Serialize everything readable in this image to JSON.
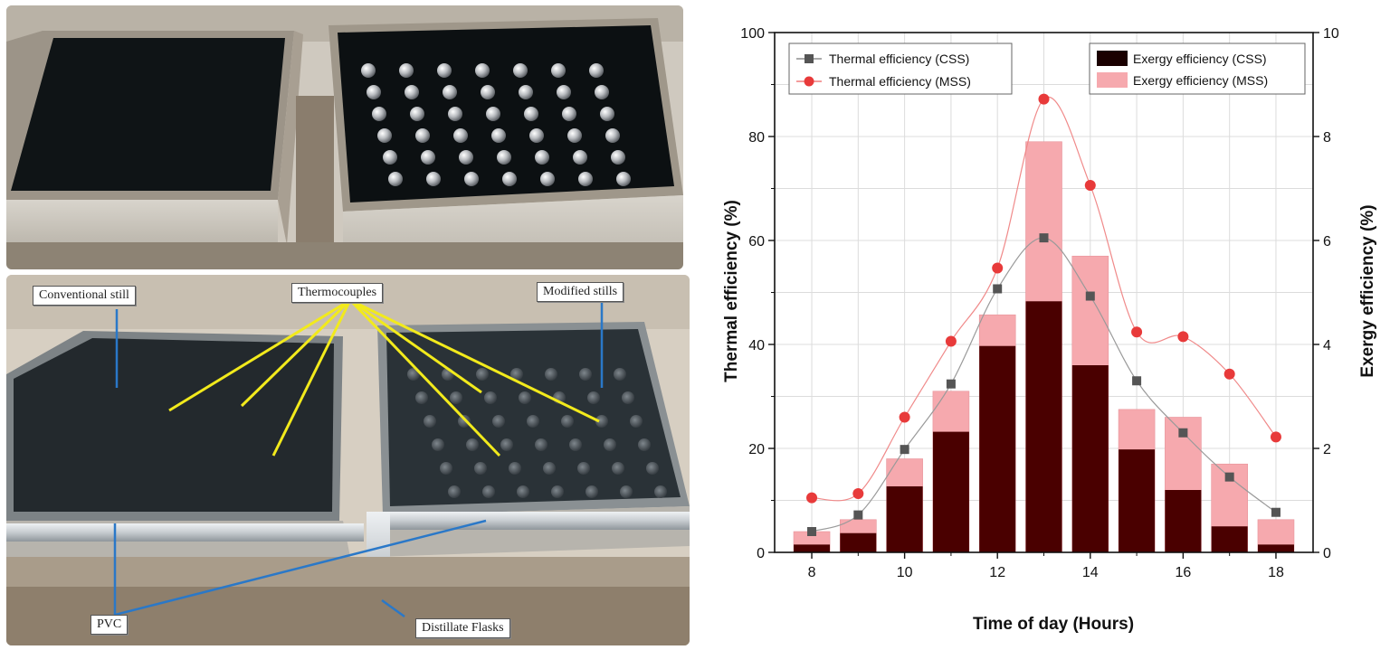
{
  "photo_labels": {
    "conventional": "Conventional still",
    "thermocouples": "Thermocouples",
    "modified": "Modified stills",
    "pvc": "PVC",
    "flasks": "Distillate Flasks"
  },
  "colors": {
    "css_exergy": "#4a0000",
    "mss_exergy": "#f6a9ae",
    "css_line": "#555555",
    "mss_line": "#e83a3a",
    "callout_line_yellow": "#f2ea1c",
    "callout_line_blue": "#2a78c8"
  },
  "chart_data": {
    "type": "bar",
    "xlabel": "Time of day (Hours)",
    "ylabel": "Thermal efficiency (%)",
    "y2label": "Exergy efficiency (%)",
    "xlim": [
      7.2,
      18.8
    ],
    "ylim": [
      0,
      100
    ],
    "y2lim": [
      0,
      10
    ],
    "xticks": [
      8,
      10,
      12,
      14,
      16,
      18
    ],
    "yticks": [
      0,
      20,
      40,
      60,
      80,
      100
    ],
    "y2ticks": [
      0,
      2,
      4,
      6,
      8,
      10
    ],
    "grid": true,
    "x": [
      8,
      9,
      10,
      11,
      12,
      13,
      14,
      15,
      16,
      17,
      18
    ],
    "bar_series": [
      {
        "name": "Exergy efficiency (CSS)",
        "axis": "right",
        "values": [
          0.15,
          0.37,
          1.27,
          2.32,
          3.97,
          4.83,
          3.6,
          1.98,
          1.2,
          0.5,
          0.15
        ]
      },
      {
        "name": "Exergy efficiency (MSS)",
        "axis": "right",
        "values": [
          0.4,
          0.63,
          1.8,
          3.1,
          4.57,
          7.9,
          5.7,
          2.75,
          2.6,
          1.7,
          0.63
        ]
      }
    ],
    "line_series": [
      {
        "name": "Thermal efficiency (CSS)",
        "axis": "left",
        "marker": "square",
        "values": [
          4,
          7.2,
          19.8,
          32.4,
          50.7,
          60.5,
          49.3,
          33,
          23,
          14.5,
          7.7
        ]
      },
      {
        "name": "Thermal efficiency (MSS)",
        "axis": "left",
        "marker": "circle",
        "values": [
          10.5,
          11.3,
          26,
          40.6,
          54.7,
          87.2,
          70.6,
          42.4,
          41.5,
          34.3,
          22.2
        ]
      }
    ],
    "legend_left_placement": "top-left",
    "legend_right_placement": "top-right"
  }
}
